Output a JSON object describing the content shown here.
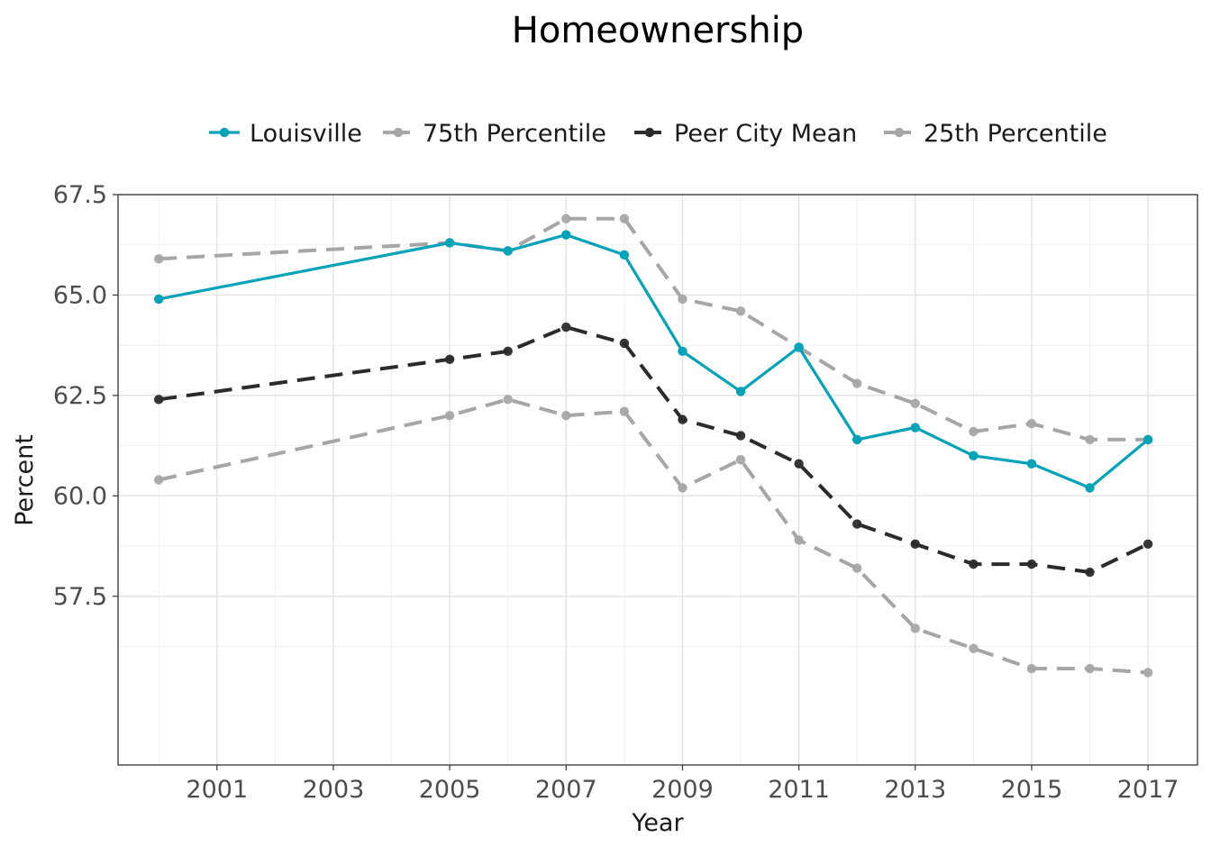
{
  "chart_data": {
    "type": "line",
    "title": "Homeownership",
    "xlabel": "Year",
    "ylabel": "Percent",
    "xlim": [
      1999.3,
      2017.85
    ],
    "ylim": [
      53.3,
      67.5
    ],
    "x_ticks": [
      2001,
      2003,
      2005,
      2007,
      2009,
      2011,
      2013,
      2015,
      2017
    ],
    "x_tick_labels": [
      "2001",
      "2003",
      "2005",
      "2007",
      "2009",
      "2011",
      "2013",
      "2015",
      "2017"
    ],
    "y_ticks": [
      57.5,
      60.0,
      62.5,
      65.0,
      67.5
    ],
    "y_tick_labels": [
      "57.5",
      "60.0",
      "62.5",
      "65.0",
      "67.5"
    ],
    "grid": true,
    "legend_position": "top",
    "x": [
      2000,
      2005,
      2006,
      2007,
      2008,
      2009,
      2010,
      2011,
      2012,
      2013,
      2014,
      2015,
      2016,
      2017
    ],
    "series": [
      {
        "name": "Louisville",
        "color": "#00a3b8",
        "line_style": "solid",
        "values": [
          64.9,
          66.3,
          66.1,
          66.5,
          66.0,
          63.6,
          62.6,
          63.7,
          61.4,
          61.7,
          61.0,
          60.8,
          60.2,
          61.4
        ]
      },
      {
        "name": "75th Percentile",
        "color": "#a6a6a6",
        "line_style": "dashed",
        "values": [
          65.9,
          66.3,
          66.1,
          66.9,
          66.9,
          64.9,
          64.6,
          63.7,
          62.8,
          62.3,
          61.6,
          61.8,
          61.4,
          61.4
        ]
      },
      {
        "name": "Peer City Mean",
        "color": "#2b2b2b",
        "line_style": "dashed",
        "values": [
          62.4,
          63.4,
          63.6,
          64.2,
          63.8,
          61.9,
          61.5,
          60.8,
          59.3,
          58.8,
          58.3,
          58.3,
          58.1,
          58.8
        ]
      },
      {
        "name": "25th Percentile",
        "color": "#a6a6a6",
        "line_style": "dashed",
        "values": [
          60.4,
          62.0,
          62.4,
          62.0,
          62.1,
          60.2,
          60.9,
          58.9,
          58.2,
          56.7,
          56.2,
          55.7,
          55.7,
          55.6
        ]
      }
    ]
  }
}
